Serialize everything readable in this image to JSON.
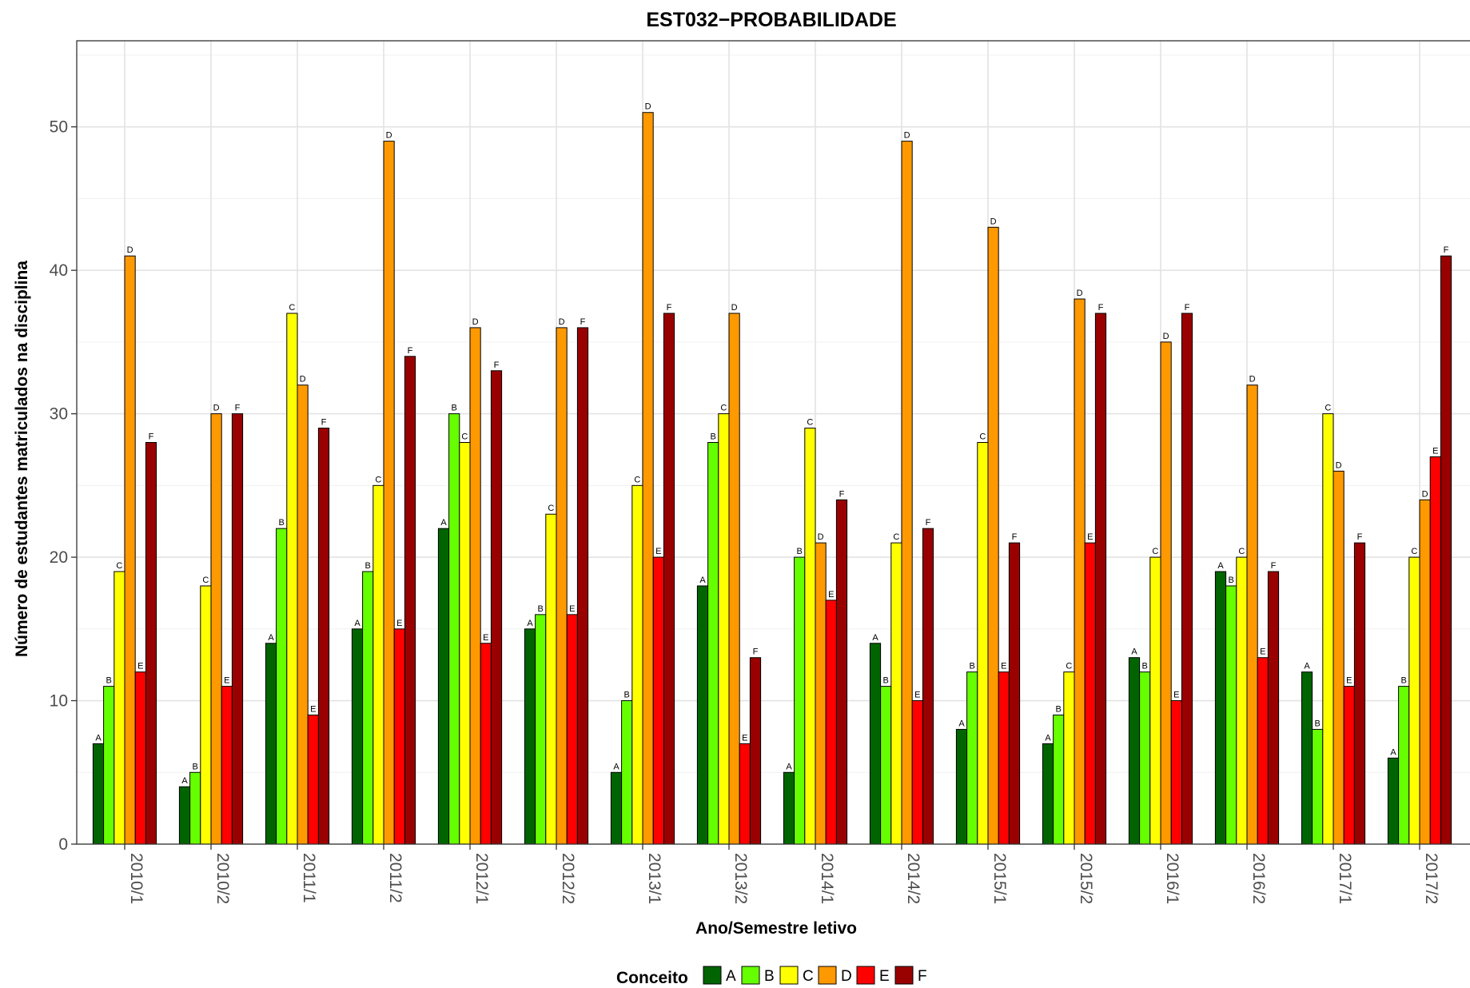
{
  "chart_data": {
    "type": "bar",
    "title": "EST032−PROBABILIDADE",
    "xlabel": "Ano/Semestre letivo",
    "ylabel": "Número de estudantes matriculados na disciplina",
    "ylim": [
      0,
      56
    ],
    "yticks": [
      0,
      10,
      20,
      30,
      40,
      50
    ],
    "grid": true,
    "legend": {
      "title": "Conceito",
      "placement": "bottom"
    },
    "categories": [
      "2010/1",
      "2010/2",
      "2011/1",
      "2011/2",
      "2012/1",
      "2012/2",
      "2013/1",
      "2013/2",
      "2014/1",
      "2014/2",
      "2015/1",
      "2015/2",
      "2016/1",
      "2016/2",
      "2017/1",
      "2017/2"
    ],
    "series": [
      {
        "name": "A",
        "color": "#006400",
        "values": [
          7,
          4,
          14,
          15,
          22,
          15,
          5,
          18,
          5,
          14,
          8,
          7,
          13,
          19,
          12,
          6
        ]
      },
      {
        "name": "B",
        "color": "#66FF00",
        "values": [
          11,
          5,
          22,
          19,
          30,
          16,
          10,
          28,
          20,
          11,
          12,
          9,
          12,
          18,
          8,
          11
        ]
      },
      {
        "name": "C",
        "color": "#FFFF00",
        "values": [
          19,
          18,
          37,
          25,
          28,
          23,
          25,
          30,
          29,
          21,
          28,
          12,
          20,
          20,
          30,
          20
        ]
      },
      {
        "name": "D",
        "color": "#FF9900",
        "values": [
          41,
          30,
          32,
          49,
          36,
          36,
          51,
          37,
          21,
          49,
          43,
          38,
          35,
          32,
          26,
          24
        ]
      },
      {
        "name": "E",
        "color": "#FF0000",
        "values": [
          12,
          11,
          9,
          15,
          14,
          16,
          20,
          7,
          17,
          10,
          12,
          21,
          10,
          13,
          11,
          27
        ]
      },
      {
        "name": "F",
        "color": "#990000",
        "values": [
          28,
          30,
          29,
          34,
          33,
          36,
          37,
          13,
          24,
          22,
          21,
          37,
          37,
          19,
          21,
          41
        ]
      }
    ]
  }
}
